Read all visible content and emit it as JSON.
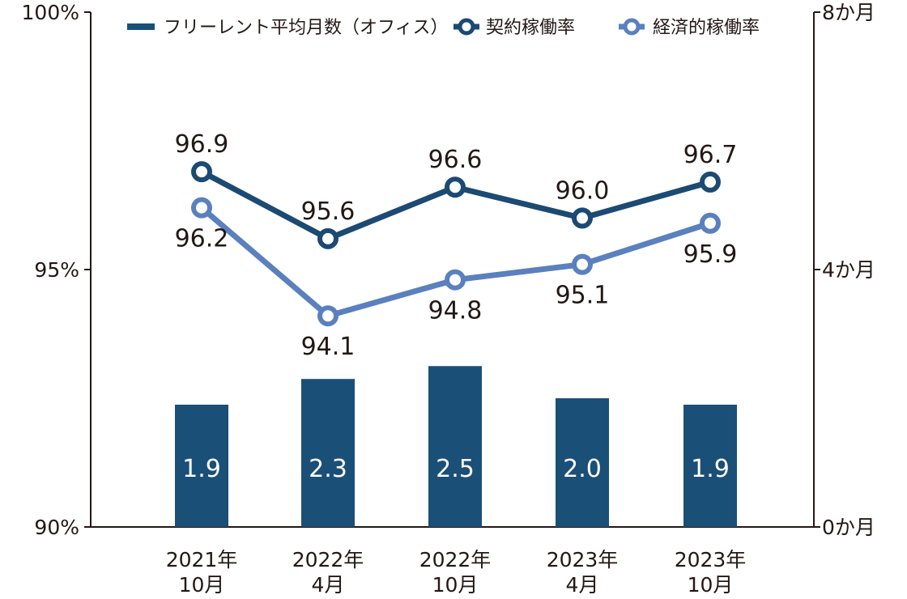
{
  "chart_data": {
    "type": "bar+line",
    "categories": [
      [
        "2021年",
        "10月"
      ],
      [
        "2022年",
        "4月"
      ],
      [
        "2022年",
        "10月"
      ],
      [
        "2023年",
        "4月"
      ],
      [
        "2023年",
        "10月"
      ]
    ],
    "left_axis": {
      "ylim": [
        90,
        100
      ],
      "ticks": [
        "90%",
        "95%",
        "100%"
      ],
      "tick_values": [
        90,
        95,
        100
      ]
    },
    "right_axis": {
      "ylim": [
        0,
        8
      ],
      "ticks": [
        "0か月",
        "4か月",
        "8か月"
      ],
      "tick_values": [
        0,
        4,
        8
      ]
    },
    "series": [
      {
        "name": "フリーレント平均月数（オフィス）",
        "type": "bar",
        "axis": "right",
        "color": "#1a4f78",
        "values": [
          1.9,
          2.3,
          2.5,
          2.0,
          1.9
        ],
        "labels": [
          "1.9",
          "2.3",
          "2.5",
          "2.0",
          "1.9"
        ]
      },
      {
        "name": "契約稼働率",
        "type": "line",
        "axis": "left",
        "color": "#1b4a73",
        "values": [
          96.9,
          95.6,
          96.6,
          96.0,
          96.7
        ],
        "labels": [
          "96.9",
          "95.6",
          "96.6",
          "96.0",
          "96.7"
        ]
      },
      {
        "name": "経済的稼働率",
        "type": "line",
        "axis": "left",
        "color": "#5a80be",
        "values": [
          96.2,
          94.1,
          94.8,
          95.1,
          95.9
        ],
        "labels": [
          "96.2",
          "94.1",
          "94.8",
          "95.1",
          "95.9"
        ]
      }
    ],
    "legend": "top",
    "grid": false
  }
}
